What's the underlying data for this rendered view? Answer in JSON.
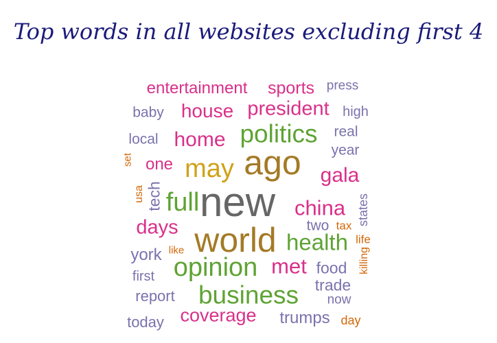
{
  "title": "Top words in all websites excluding first 4",
  "colors": {
    "pink": "#d9308a",
    "green": "#5ea334",
    "purple": "#7a72ad",
    "gold": "#cfa21a",
    "olive": "#a47a26",
    "gray": "#666666",
    "orange": "#d4680a"
  },
  "words": [
    {
      "text": "entertainment",
      "color": "pink"
    },
    {
      "text": "sports",
      "color": "pink"
    },
    {
      "text": "press",
      "color": "purple"
    },
    {
      "text": "baby",
      "color": "purple"
    },
    {
      "text": "house",
      "color": "pink"
    },
    {
      "text": "president",
      "color": "pink"
    },
    {
      "text": "high",
      "color": "purple"
    },
    {
      "text": "real",
      "color": "purple"
    },
    {
      "text": "local",
      "color": "purple"
    },
    {
      "text": "home",
      "color": "pink"
    },
    {
      "text": "politics",
      "color": "green"
    },
    {
      "text": "year",
      "color": "purple"
    },
    {
      "text": "set",
      "color": "orange"
    },
    {
      "text": "one",
      "color": "pink"
    },
    {
      "text": "may",
      "color": "gold"
    },
    {
      "text": "ago",
      "color": "olive"
    },
    {
      "text": "gala",
      "color": "pink"
    },
    {
      "text": "usa",
      "color": "orange"
    },
    {
      "text": "tech",
      "color": "purple"
    },
    {
      "text": "full",
      "color": "green"
    },
    {
      "text": "new",
      "color": "gray"
    },
    {
      "text": "china",
      "color": "pink"
    },
    {
      "text": "states",
      "color": "purple"
    },
    {
      "text": "days",
      "color": "pink"
    },
    {
      "text": "two",
      "color": "purple"
    },
    {
      "text": "tax",
      "color": "orange"
    },
    {
      "text": "world",
      "color": "olive"
    },
    {
      "text": "health",
      "color": "green"
    },
    {
      "text": "life",
      "color": "orange"
    },
    {
      "text": "like",
      "color": "orange"
    },
    {
      "text": "york",
      "color": "purple"
    },
    {
      "text": "killing",
      "color": "orange"
    },
    {
      "text": "met",
      "color": "pink"
    },
    {
      "text": "opinion",
      "color": "green"
    },
    {
      "text": "food",
      "color": "purple"
    },
    {
      "text": "first",
      "color": "purple"
    },
    {
      "text": "trade",
      "color": "purple"
    },
    {
      "text": "report",
      "color": "purple"
    },
    {
      "text": "business",
      "color": "green"
    },
    {
      "text": "now",
      "color": "purple"
    },
    {
      "text": "today",
      "color": "purple"
    },
    {
      "text": "coverage",
      "color": "pink"
    },
    {
      "text": "trumps",
      "color": "purple"
    },
    {
      "text": "day",
      "color": "orange"
    }
  ]
}
